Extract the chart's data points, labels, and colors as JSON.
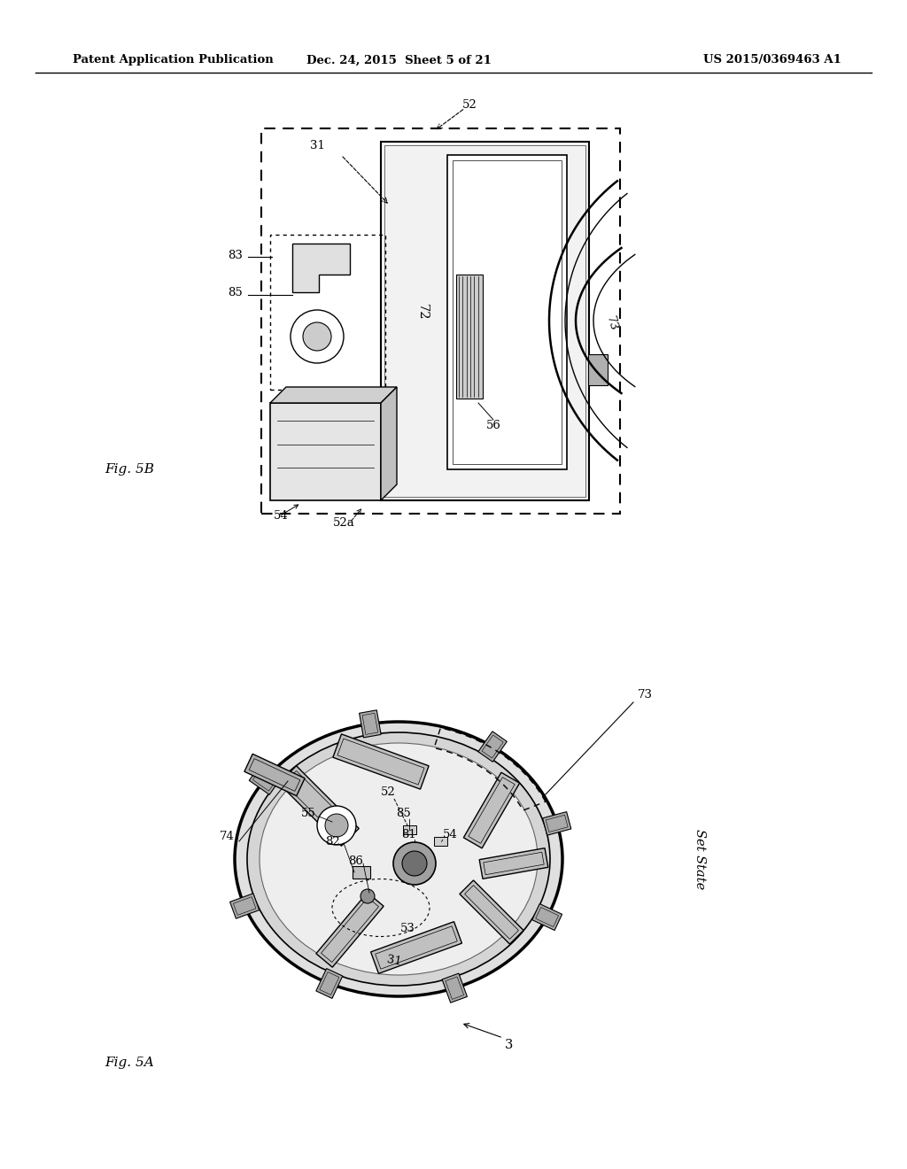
{
  "bg_color": "#ffffff",
  "header_left": "Patent Application Publication",
  "header_center": "Dec. 24, 2015  Sheet 5 of 21",
  "header_right": "US 2015/0369463 A1",
  "fig5b_label": "Fig. 5B",
  "fig5a_label": "Fig. 5A",
  "set_state_label": "Set State"
}
